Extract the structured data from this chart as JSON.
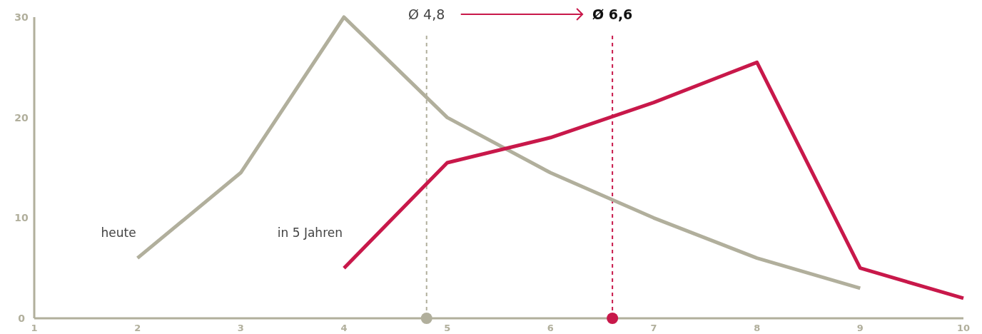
{
  "chart_data": {
    "type": "line",
    "series": [
      {
        "name": "heute",
        "color": "#b1af9c",
        "x": [
          2,
          3,
          4,
          5,
          6,
          7,
          8,
          9
        ],
        "values": [
          6,
          14.5,
          30,
          20,
          14.5,
          10,
          6,
          3
        ]
      },
      {
        "name": "in 5 Jahren",
        "color": "#c8184a",
        "x": [
          4,
          5,
          6,
          7,
          8,
          9,
          10
        ],
        "values": [
          5,
          15.5,
          18,
          21.5,
          25.5,
          5,
          2
        ]
      }
    ],
    "xlim": [
      1,
      10
    ],
    "xticks": [
      1,
      2,
      3,
      4,
      5,
      6,
      7,
      8,
      9,
      10
    ],
    "ylim": [
      0,
      30
    ],
    "yticks": [
      0,
      10,
      20,
      30
    ],
    "ref_lines": [
      {
        "axis": "x",
        "value": 4.8,
        "label": "Ø 4,8",
        "color": "#b1af9c",
        "line_style": "dashed"
      },
      {
        "axis": "x",
        "value": 6.6,
        "label": "Ø 6,6",
        "color": "#c8184a",
        "line_style": "dashed"
      }
    ],
    "grid": false,
    "legend": false,
    "marker": "none",
    "line_style": "solid"
  }
}
